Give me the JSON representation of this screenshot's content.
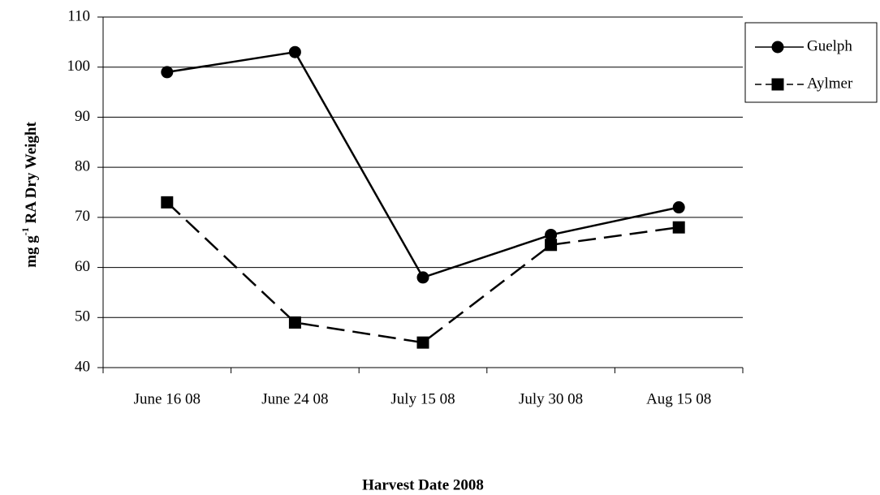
{
  "chart_data": {
    "type": "line",
    "x_label": "Harvest Date 2008",
    "y_label": [
      "mg g",
      "-1",
      " RA Dry Weight"
    ],
    "categories": [
      "June 16 08",
      "June 24 08",
      "July 15 08",
      "July 30 08",
      "Aug 15 08"
    ],
    "series": [
      {
        "name": "Guelph",
        "color": "#000000",
        "line_style": "solid",
        "marker": "circle",
        "values": [
          99,
          103,
          58,
          66.5,
          72
        ]
      },
      {
        "name": "Aylmer",
        "color": "#000000",
        "line_style": "dashed",
        "marker": "square",
        "values": [
          73,
          49,
          45,
          64.5,
          68
        ]
      }
    ],
    "ylim": [
      40,
      110
    ],
    "yticks": [
      40,
      50,
      60,
      70,
      80,
      90,
      100,
      110
    ],
    "grid": true,
    "legend": "right"
  }
}
